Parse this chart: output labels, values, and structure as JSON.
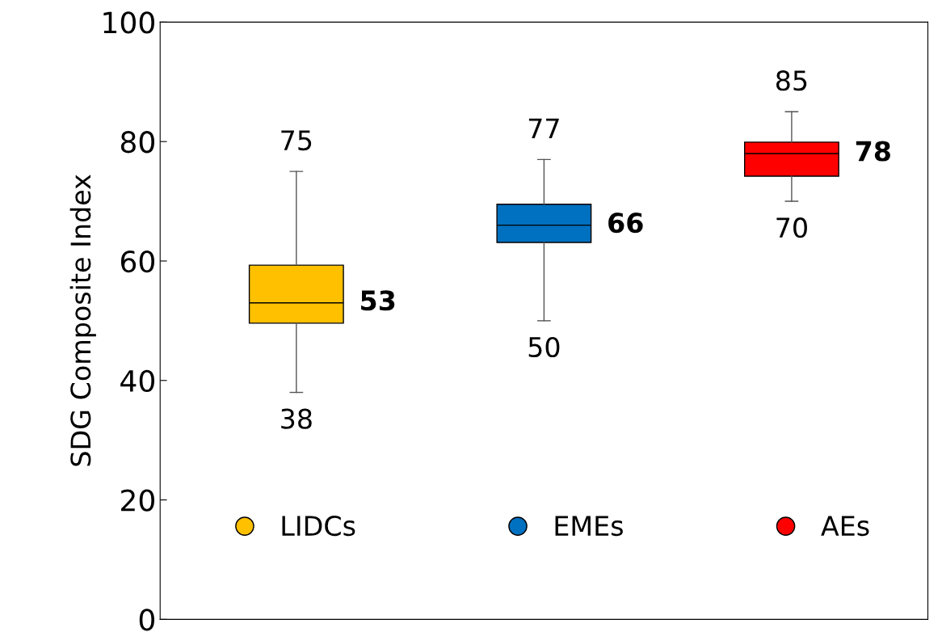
{
  "chart_data": {
    "type": "box",
    "ylabel": "SDG Composite Index",
    "categories": [
      null,
      null,
      null
    ],
    "series": [
      {
        "name": "LIDCs",
        "color": "#ffc000",
        "boxes": [
          {
            "low": 38,
            "q1": 49.6,
            "median": 53,
            "q3": 59.3,
            "high": 75
          },
          null,
          null
        ]
      },
      {
        "name": "EMEs",
        "color": "#0070c0",
        "boxes": [
          null,
          {
            "low": 50,
            "q1": 63.1,
            "median": 66,
            "q3": 69.5,
            "high": 77
          },
          null
        ]
      },
      {
        "name": "AEs",
        "color": "#ff0000",
        "boxes": [
          null,
          null,
          {
            "low": 70,
            "q1": 74.2,
            "median": 78,
            "q3": 79.9,
            "high": 85
          }
        ]
      }
    ],
    "annotations": [
      {
        "text": "75",
        "y": 75
      },
      {
        "text": "38",
        "y": 38
      },
      "53",
      {
        "text": "77",
        "y": 77
      },
      {
        "text": "50",
        "y": 50
      },
      "66",
      {
        "text": "85",
        "y": 85
      },
      {
        "text": "70",
        "y": 70
      },
      "78"
    ],
    "ylim": [
      0,
      100
    ],
    "yticks": [
      0,
      20,
      40,
      60,
      80,
      100
    ],
    "tick_labels": "y",
    "grid": false,
    "legend": "bottom",
    "marker": "circle"
  }
}
